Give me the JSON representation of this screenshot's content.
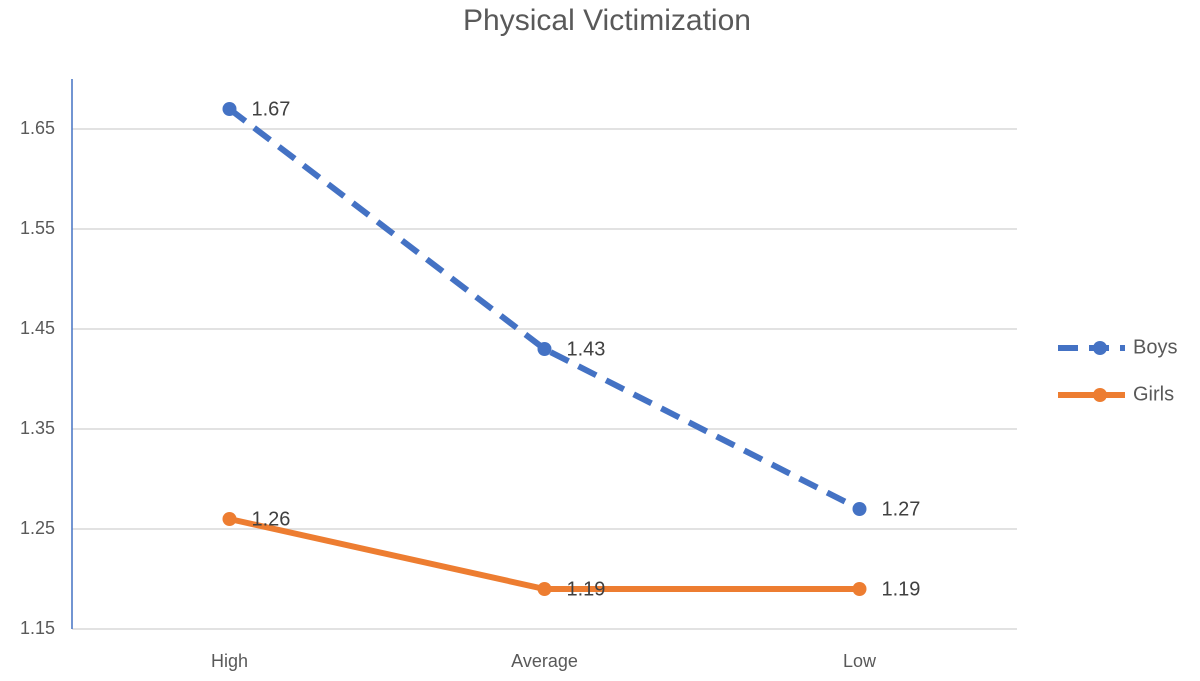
{
  "chart_data": {
    "type": "line",
    "title": "Physical Victimization",
    "categories": [
      "High",
      "Average",
      "Low"
    ],
    "series": [
      {
        "name": "Boys",
        "color": "#4472c4",
        "line_style": "dashed",
        "values": [
          1.67,
          1.43,
          1.27
        ]
      },
      {
        "name": "Girls",
        "color": "#ed7d31",
        "line_style": "solid",
        "values": [
          1.26,
          1.19,
          1.19
        ]
      }
    ],
    "ylim": [
      1.15,
      1.7
    ],
    "yticks": [
      1.15,
      1.25,
      1.35,
      1.45,
      1.55,
      1.65
    ],
    "grid": true,
    "legend": "right",
    "data_labels": true
  }
}
